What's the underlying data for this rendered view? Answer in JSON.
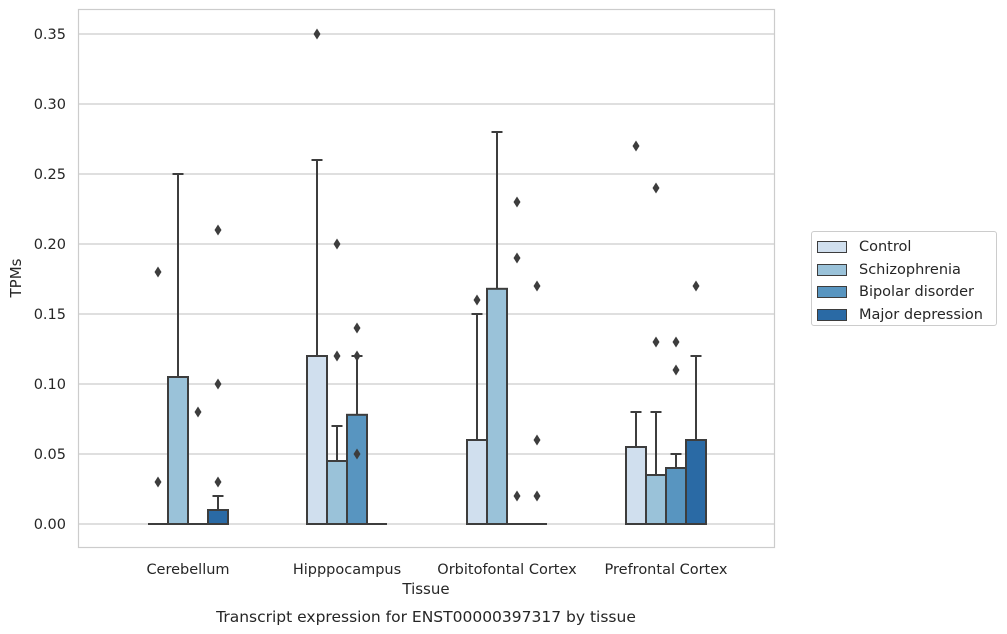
{
  "chart_data": {
    "type": "boxplot",
    "title": "Transcript expression for ENST00000397317 by tissue",
    "xlabel": "Tissue",
    "ylabel": "TPMs",
    "ylim": [
      -0.017,
      0.367
    ],
    "yticks": [
      "0.00",
      "0.05",
      "0.10",
      "0.15",
      "0.20",
      "0.25",
      "0.30",
      "0.35"
    ],
    "grid": true,
    "legend_position": "right",
    "categories": [
      "Cerebellum",
      "Hipppocampus",
      "Orbitofontal Cortex",
      "Prefrontal Cortex"
    ],
    "series": [
      {
        "name": "Control",
        "color": "#d0dfee",
        "boxes": [
          {
            "q1": 0,
            "median": 0,
            "q3": 0,
            "whisker_low": 0,
            "whisker_high": 0,
            "outliers": [
              0.03,
              0.18
            ]
          },
          {
            "q1": 0,
            "median": 0,
            "q3": 0.12,
            "whisker_low": 0,
            "whisker_high": 0.26,
            "outliers": [
              0.35
            ]
          },
          {
            "q1": 0,
            "median": 0,
            "q3": 0.06,
            "whisker_low": 0,
            "whisker_high": 0.15,
            "outliers": [
              0.16
            ]
          },
          {
            "q1": 0,
            "median": 0,
            "q3": 0.055,
            "whisker_low": 0,
            "whisker_high": 0.08,
            "outliers": [
              0.27
            ]
          }
        ]
      },
      {
        "name": "Schizophrenia",
        "color": "#9ac2d9",
        "boxes": [
          {
            "q1": 0,
            "median": 0,
            "q3": 0.105,
            "whisker_low": 0,
            "whisker_high": 0.25,
            "outliers": []
          },
          {
            "q1": 0,
            "median": 0,
            "q3": 0.045,
            "whisker_low": 0,
            "whisker_high": 0.07,
            "outliers": [
              0.12,
              0.2
            ]
          },
          {
            "q1": 0,
            "median": 0,
            "q3": 0.168,
            "whisker_low": 0,
            "whisker_high": 0.28,
            "outliers": []
          },
          {
            "q1": 0,
            "median": 0,
            "q3": 0.035,
            "whisker_low": 0,
            "whisker_high": 0.08,
            "outliers": [
              0.13,
              0.24
            ]
          }
        ]
      },
      {
        "name": "Bipolar disorder",
        "color": "#5895c0",
        "boxes": [
          {
            "q1": 0,
            "median": 0,
            "q3": 0,
            "whisker_low": 0,
            "whisker_high": 0,
            "outliers": [
              0.08
            ]
          },
          {
            "q1": 0,
            "median": 0,
            "q3": 0.078,
            "whisker_low": 0,
            "whisker_high": 0.12,
            "outliers": [
              0.05,
              0.12,
              0.14
            ]
          },
          {
            "q1": 0,
            "median": 0,
            "q3": 0,
            "whisker_low": 0,
            "whisker_high": 0,
            "outliers": [
              0.02,
              0.19,
              0.23
            ]
          },
          {
            "q1": 0,
            "median": 0,
            "q3": 0.04,
            "whisker_low": 0,
            "whisker_high": 0.05,
            "outliers": [
              0.11,
              0.13
            ]
          }
        ]
      },
      {
        "name": "Major depression",
        "color": "#2a6aa5",
        "boxes": [
          {
            "q1": 0,
            "median": 0,
            "q3": 0.01,
            "whisker_low": 0,
            "whisker_high": 0.02,
            "outliers": [
              0.03,
              0.1,
              0.21
            ]
          },
          {
            "q1": 0,
            "median": 0,
            "q3": 0,
            "whisker_low": 0,
            "whisker_high": 0,
            "outliers": []
          },
          {
            "q1": 0,
            "median": 0,
            "q3": 0,
            "whisker_low": 0,
            "whisker_high": 0,
            "outliers": [
              0.02,
              0.06,
              0.17
            ]
          },
          {
            "q1": 0,
            "median": 0,
            "q3": 0.06,
            "whisker_low": 0,
            "whisker_high": 0.12,
            "outliers": [
              0.17
            ]
          }
        ]
      }
    ]
  }
}
